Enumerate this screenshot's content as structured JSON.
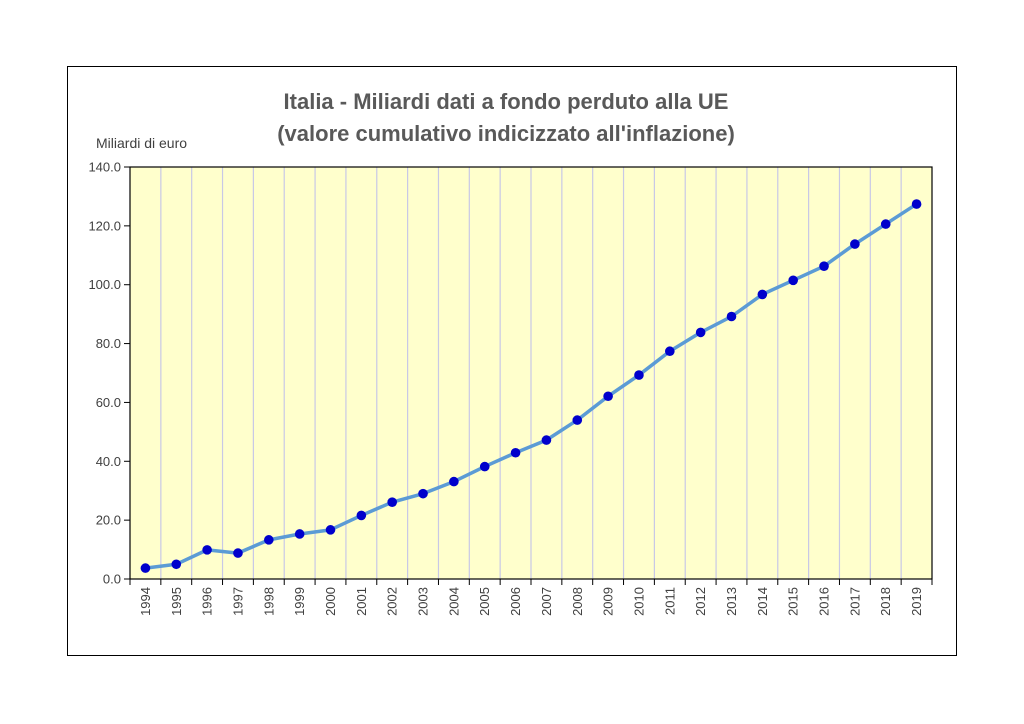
{
  "chart_data": {
    "type": "line",
    "title_lines": [
      "Italia - Miliardi dati a fondo perduto alla UE",
      "(valore cumulativo indicizzato all'inflazione)"
    ],
    "xlabel": "",
    "ylabel": "Miliardi di euro",
    "categories": [
      "1994",
      "1995",
      "1996",
      "1997",
      "1998",
      "1999",
      "2000",
      "2001",
      "2002",
      "2003",
      "2004",
      "2005",
      "2006",
      "2007",
      "2008",
      "2009",
      "2010",
      "2011",
      "2012",
      "2013",
      "2014",
      "2015",
      "2016",
      "2017",
      "2018",
      "2019"
    ],
    "values": [
      3.7,
      5.0,
      9.9,
      8.8,
      13.3,
      15.3,
      16.7,
      21.6,
      26.1,
      29.0,
      33.1,
      38.2,
      42.9,
      47.2,
      54.0,
      62.1,
      69.3,
      77.4,
      83.8,
      89.2,
      96.7,
      101.5,
      106.3,
      113.8,
      120.6,
      127.4
    ],
    "y_ticks": [
      "0.0",
      "20.0",
      "40.0",
      "60.0",
      "80.0",
      "100.0",
      "120.0",
      "140.0"
    ],
    "ylim": [
      0,
      140
    ],
    "grid": "vertical",
    "legend": "none",
    "colors": {
      "line": "#5b9bd5",
      "marker": "#0000cc",
      "plot_background": "#ffffcc",
      "gridline": "#c8c8e6"
    }
  }
}
